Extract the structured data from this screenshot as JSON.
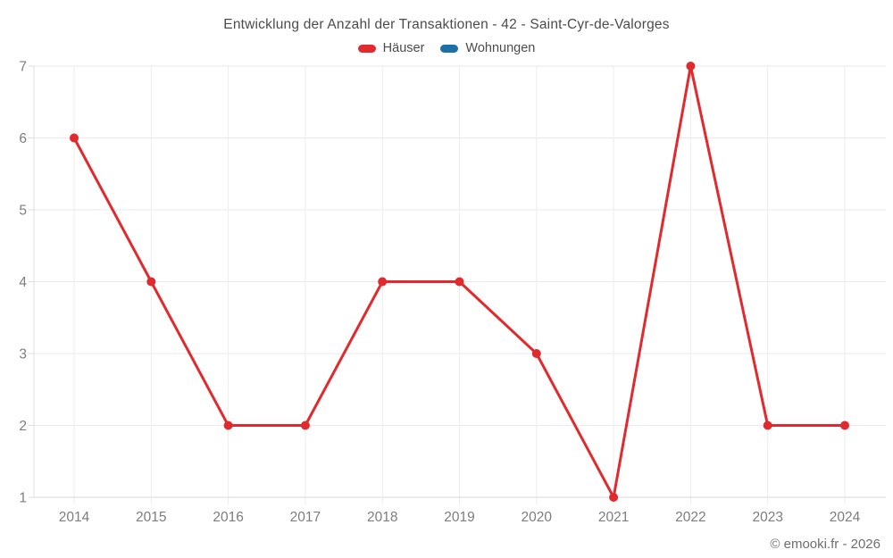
{
  "chart_data": {
    "type": "line",
    "title": "Entwicklung der Anzahl der Transaktionen - 42 - Saint-Cyr-de-Valorges",
    "categories": [
      "2014",
      "2015",
      "2016",
      "2017",
      "2018",
      "2019",
      "2020",
      "2021",
      "2022",
      "2023",
      "2024"
    ],
    "series": [
      {
        "name": "Häuser",
        "color": "#e02a2e",
        "values": [
          6,
          4,
          2,
          2,
          4,
          4,
          3,
          1,
          7,
          2,
          2
        ]
      },
      {
        "name": "Wohnungen",
        "color": "#1c70a8",
        "values": []
      }
    ],
    "xlabel": "",
    "ylabel": "",
    "ylim": [
      1,
      7
    ],
    "yticks": [
      1,
      2,
      3,
      4,
      5,
      6,
      7
    ],
    "grid": true,
    "legend_position": "top"
  },
  "footer": {
    "copyright": "© emooki.fr - 2026"
  }
}
